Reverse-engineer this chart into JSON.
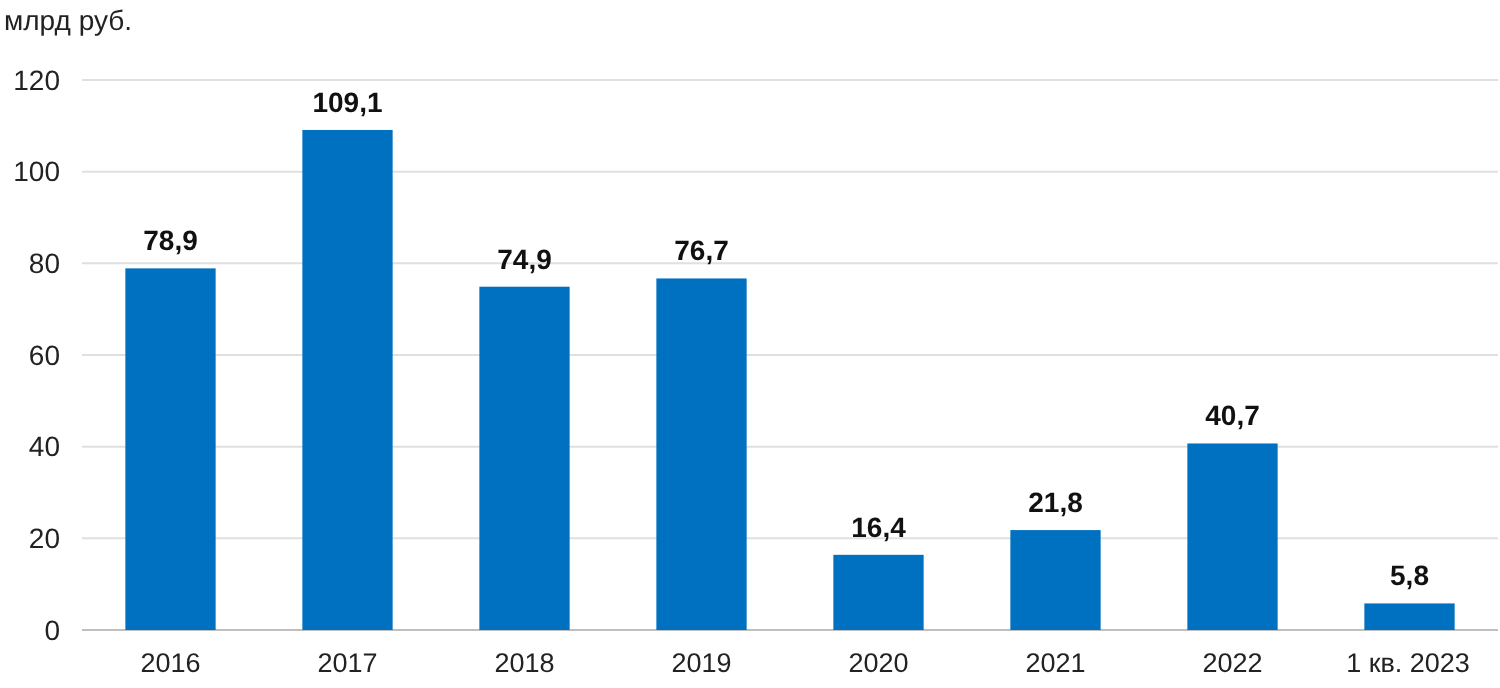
{
  "chart_data": {
    "type": "bar",
    "ylabel": "млрд руб.",
    "categories": [
      "2016",
      "2017",
      "2018",
      "2019",
      "2020",
      "2021",
      "2022",
      "1 кв. 2023"
    ],
    "values": [
      78.9,
      109.1,
      74.9,
      76.7,
      16.4,
      21.8,
      40.7,
      5.8
    ],
    "value_labels": [
      "78,9",
      "109,1",
      "74,9",
      "76,7",
      "16,4",
      "21,8",
      "40,7",
      "5,8"
    ],
    "color": "#0070c0",
    "ylim": [
      0,
      120
    ],
    "yticks": [
      0,
      20,
      40,
      60,
      80,
      100,
      120
    ],
    "grid": "y"
  }
}
